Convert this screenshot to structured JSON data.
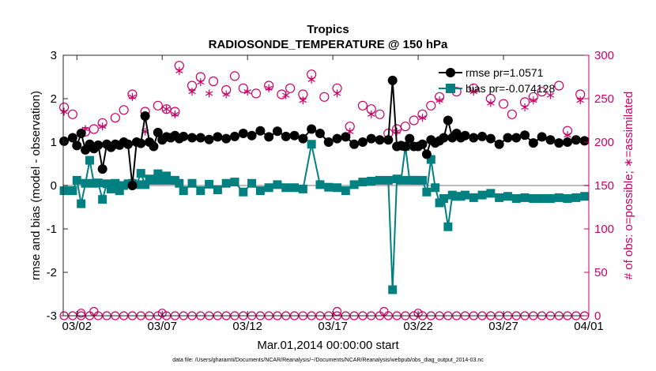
{
  "chart_data": {
    "type": "line",
    "title": "Tropics",
    "subtitle": "RADIOSONDE_TEMPERATURE @ 150 hPa",
    "xlabel": "Mar.01,2014 00:00:00 start",
    "ylabel": "rmse and bias (model - observation)",
    "ylabel_right": "# of obs: o=possible; ∗=assimilated",
    "footer": "data file: /Users/gharamti/Documents/NCAR/Reanalysis/~/Documents/NCAR/Reanalysis/webpub/obs_diag_output_2014-03.nc",
    "x_ticks": [
      "03/02",
      "03/07",
      "03/12",
      "03/17",
      "03/22",
      "03/27",
      "04/01"
    ],
    "x_tick_days": [
      1,
      6,
      11,
      16,
      21,
      26,
      31
    ],
    "xlim": [
      0.2,
      31.0
    ],
    "ylim": [
      -3,
      3
    ],
    "y_ticks": [
      "-3",
      "-2",
      "-1",
      "0",
      "1",
      "2",
      "3"
    ],
    "ylim_right": [
      0,
      300
    ],
    "y_ticks_right": [
      "0",
      "50",
      "100",
      "150",
      "200",
      "250",
      "300"
    ],
    "legend": {
      "position": "top-right",
      "rmse_label": "rmse pr=1.0571",
      "bias_label": "bias pr=-0.074128"
    },
    "colors": {
      "rmse": "#000000",
      "bias": "#008080",
      "obs": "#cc0066",
      "zero_line": "#bbbbbb"
    },
    "x_days": [
      0.25,
      0.75,
      1.0,
      1.25,
      1.5,
      1.75,
      2.0,
      2.25,
      2.5,
      2.75,
      3.0,
      3.25,
      3.5,
      3.75,
      4.0,
      4.25,
      4.5,
      4.75,
      5.0,
      5.25,
      5.5,
      5.75,
      6.0,
      6.25,
      6.5,
      6.75,
      7.0,
      7.25,
      7.75,
      8.25,
      8.75,
      9.25,
      9.75,
      10.25,
      10.75,
      11.25,
      11.75,
      12.25,
      12.75,
      13.25,
      13.75,
      14.25,
      14.75,
      15.25,
      15.75,
      16.25,
      16.75,
      17.25,
      17.75,
      18.25,
      18.75,
      19.25,
      19.5,
      19.75,
      20.0,
      20.25,
      20.5,
      20.75,
      21.0,
      21.25,
      21.5,
      21.75,
      22.0,
      22.25,
      22.5,
      22.75,
      23.0,
      23.25,
      23.5,
      23.75,
      24.25,
      24.75,
      25.25,
      25.75,
      26.25,
      26.75,
      27.25,
      27.75,
      28.25,
      28.75,
      29.25,
      29.75,
      30.25,
      30.75
    ],
    "series": [
      {
        "name": "rmse",
        "values": [
          1.02,
          1.1,
          0.92,
          1.2,
          0.82,
          0.95,
          0.85,
          0.93,
          0.38,
          0.95,
          0.88,
          0.95,
          0.93,
          1.0,
          0.95,
          0.0,
          1.0,
          0.97,
          1.6,
          1.0,
          0.9,
          1.22,
          1.05,
          1.12,
          1.1,
          1.15,
          1.08,
          1.13,
          1.1,
          1.1,
          1.06,
          1.12,
          1.08,
          1.13,
          1.2,
          1.15,
          1.26,
          1.12,
          1.25,
          1.13,
          1.15,
          1.08,
          1.3,
          1.2,
          1.0,
          1.08,
          1.12,
          0.95,
          1.0,
          1.08,
          1.05,
          1.05,
          2.42,
          0.9,
          0.92,
          0.9,
          1.08,
          0.9,
          0.9,
          0.95,
          0.72,
          1.05,
          0.98,
          1.03,
          1.1,
          1.5,
          1.1,
          1.2,
          1.1,
          1.15,
          1.1,
          1.13,
          1.08,
          0.95,
          1.1,
          1.1,
          1.16,
          0.98,
          1.12,
          1.05,
          0.98,
          1.0,
          1.05,
          1.03
        ]
      },
      {
        "name": "bias",
        "values": [
          -0.12,
          -0.12,
          0.12,
          -0.42,
          0.05,
          0.58,
          0.05,
          0.06,
          -0.32,
          0.04,
          -0.08,
          0.05,
          -0.12,
          0.0,
          0.04,
          0.05,
          0.02,
          0.28,
          0.02,
          0.15,
          0.12,
          0.27,
          0.12,
          0.22,
          0.12,
          0.12,
          0.05,
          -0.12,
          0.05,
          -0.12,
          0.03,
          -0.1,
          0.05,
          0.08,
          -0.15,
          0.05,
          -0.12,
          -0.05,
          0.02,
          -0.05,
          -0.05,
          -0.08,
          0.95,
          0.02,
          -0.04,
          -0.05,
          -0.12,
          0.02,
          0.08,
          0.1,
          0.12,
          0.12,
          -2.4,
          0.15,
          0.12,
          0.9,
          0.12,
          0.12,
          0.12,
          0.12,
          -0.15,
          0.6,
          -0.05,
          -0.4,
          -0.3,
          -0.95,
          -0.22,
          -0.25,
          -0.25,
          -0.22,
          -0.28,
          -0.22,
          -0.18,
          -0.28,
          -0.25,
          -0.3,
          -0.28,
          -0.3,
          -0.3,
          -0.3,
          -0.28,
          -0.3,
          -0.28,
          -0.25
        ]
      }
    ],
    "obs_possible": [
      {
        "day": 0.25,
        "count": 240
      },
      {
        "day": 0.75,
        "count": 232
      },
      {
        "day": 1.5,
        "count": 212
      },
      {
        "day": 2.0,
        "count": 215
      },
      {
        "day": 2.5,
        "count": 222
      },
      {
        "day": 3.25,
        "count": 228
      },
      {
        "day": 3.75,
        "count": 237
      },
      {
        "day": 4.25,
        "count": 255
      },
      {
        "day": 5.0,
        "count": 235
      },
      {
        "day": 5.75,
        "count": 242
      },
      {
        "day": 6.25,
        "count": 238
      },
      {
        "day": 6.75,
        "count": 235
      },
      {
        "day": 7.0,
        "count": 288
      },
      {
        "day": 7.75,
        "count": 265
      },
      {
        "day": 8.25,
        "count": 275
      },
      {
        "day": 9.0,
        "count": 270
      },
      {
        "day": 9.75,
        "count": 260
      },
      {
        "day": 10.25,
        "count": 276
      },
      {
        "day": 10.75,
        "count": 262
      },
      {
        "day": 11.5,
        "count": 256
      },
      {
        "day": 12.25,
        "count": 265
      },
      {
        "day": 13.0,
        "count": 255
      },
      {
        "day": 13.5,
        "count": 262
      },
      {
        "day": 14.25,
        "count": 255
      },
      {
        "day": 14.75,
        "count": 278
      },
      {
        "day": 15.5,
        "count": 252
      },
      {
        "day": 16.25,
        "count": 262
      },
      {
        "day": 17.0,
        "count": 218
      },
      {
        "day": 17.75,
        "count": 242
      },
      {
        "day": 18.25,
        "count": 238
      },
      {
        "day": 18.75,
        "count": 232
      },
      {
        "day": 19.25,
        "count": 210
      },
      {
        "day": 19.75,
        "count": 215
      },
      {
        "day": 20.25,
        "count": 218
      },
      {
        "day": 20.75,
        "count": 225
      },
      {
        "day": 21.25,
        "count": 232
      },
      {
        "day": 21.75,
        "count": 242
      },
      {
        "day": 22.25,
        "count": 252
      },
      {
        "day": 23.25,
        "count": 258
      },
      {
        "day": 24.25,
        "count": 262
      },
      {
        "day": 25.25,
        "count": 250
      },
      {
        "day": 26.0,
        "count": 244
      },
      {
        "day": 26.5,
        "count": 232
      },
      {
        "day": 27.25,
        "count": 246
      },
      {
        "day": 27.75,
        "count": 252
      },
      {
        "day": 28.25,
        "count": 258
      },
      {
        "day": 29.25,
        "count": 265
      },
      {
        "day": 29.75,
        "count": 213
      },
      {
        "day": 30.5,
        "count": 255
      }
    ],
    "obs_assimilated": [
      {
        "day": 0.25,
        "count": 235
      },
      {
        "day": 1.5,
        "count": 215
      },
      {
        "day": 2.5,
        "count": 218
      },
      {
        "day": 4.25,
        "count": 252
      },
      {
        "day": 5.0,
        "count": 212
      },
      {
        "day": 6.25,
        "count": 238
      },
      {
        "day": 6.75,
        "count": 232
      },
      {
        "day": 7.0,
        "count": 282
      },
      {
        "day": 7.75,
        "count": 258
      },
      {
        "day": 8.25,
        "count": 269
      },
      {
        "day": 8.75,
        "count": 256
      },
      {
        "day": 9.75,
        "count": 255
      },
      {
        "day": 11.0,
        "count": 258
      },
      {
        "day": 12.25,
        "count": 262
      },
      {
        "day": 13.25,
        "count": 254
      },
      {
        "day": 14.25,
        "count": 248
      },
      {
        "day": 14.75,
        "count": 272
      },
      {
        "day": 16.25,
        "count": 256
      },
      {
        "day": 17.0,
        "count": 212
      },
      {
        "day": 18.25,
        "count": 232
      },
      {
        "day": 19.75,
        "count": 212
      },
      {
        "day": 21.25,
        "count": 228
      },
      {
        "day": 22.25,
        "count": 248
      },
      {
        "day": 24.25,
        "count": 258
      },
      {
        "day": 25.25,
        "count": 245
      },
      {
        "day": 27.25,
        "count": 240
      },
      {
        "day": 27.75,
        "count": 248
      },
      {
        "day": 28.75,
        "count": 254
      },
      {
        "day": 29.75,
        "count": 208
      },
      {
        "day": 30.5,
        "count": 248
      }
    ],
    "obs_zero_days": [
      0.25,
      0.75,
      1.25,
      1.75,
      2.25,
      2.75,
      3.25,
      3.75,
      4.25,
      4.75,
      5.25,
      5.75,
      6.25,
      6.75,
      7.25,
      7.75,
      8.25,
      8.75,
      9.25,
      9.75,
      10.25,
      10.75,
      11.25,
      11.75,
      12.25,
      12.75,
      13.25,
      13.75,
      14.25,
      14.75,
      15.25,
      15.75,
      16.25,
      16.75,
      17.25,
      17.75,
      18.25,
      18.75,
      19.25,
      19.75,
      20.25,
      20.75,
      21.25,
      21.75,
      22.25,
      22.75,
      23.25,
      23.75,
      24.25,
      24.75,
      25.25,
      25.75,
      26.25,
      26.75,
      27.25,
      27.75,
      28.25,
      28.75,
      29.25,
      29.75,
      30.25,
      30.75
    ],
    "obs_zero_bumps": [
      {
        "day": 1.25,
        "count": 3
      },
      {
        "day": 2.0,
        "count": 5
      },
      {
        "day": 6.0,
        "count": 3
      },
      {
        "day": 16.25,
        "count": 5
      },
      {
        "day": 19.0,
        "count": 5
      },
      {
        "day": 21.0,
        "count": 3
      }
    ]
  }
}
